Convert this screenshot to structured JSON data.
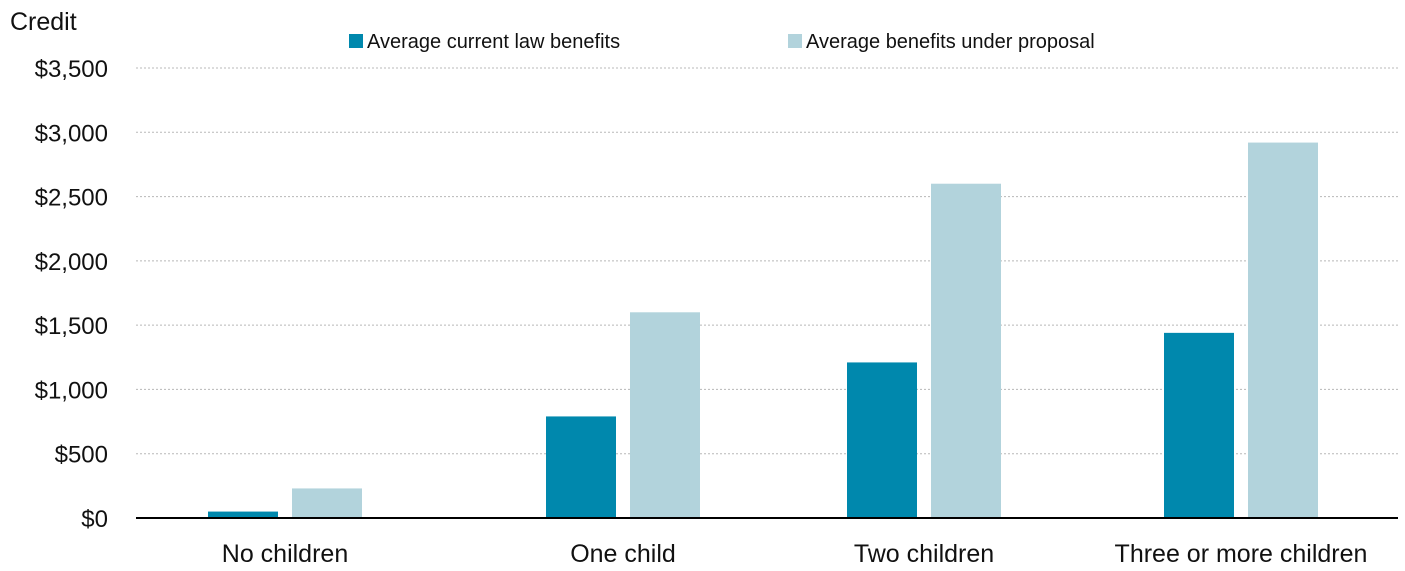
{
  "chart_data": {
    "type": "bar",
    "title": "",
    "xlabel": "",
    "ylabel": "Credit",
    "categories": [
      "No children",
      "One child",
      "Two children",
      "Three or more children"
    ],
    "series": [
      {
        "name": "Average current law benefits",
        "color": "#0088ad",
        "values": [
          50,
          790,
          1210,
          1440
        ]
      },
      {
        "name": "Average benefits under proposal",
        "color": "#b2d3dc",
        "values": [
          230,
          1600,
          2600,
          2920
        ]
      }
    ],
    "ylim": [
      0,
      3500
    ],
    "yticks": [
      0,
      500,
      1000,
      1500,
      2000,
      2500,
      3000,
      3500
    ],
    "ytick_labels": [
      "$0",
      "$500",
      "$1,000",
      "$1,500",
      "$2,000",
      "$2,500",
      "$3,000",
      "$3,500"
    ],
    "grid": true,
    "legend_position": "top-center"
  }
}
